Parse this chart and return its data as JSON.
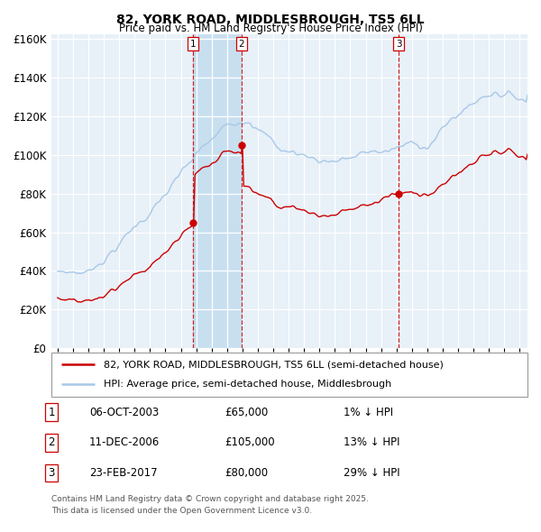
{
  "title": "82, YORK ROAD, MIDDLESBROUGH, TS5 6LL",
  "subtitle": "Price paid vs. HM Land Registry's House Price Index (HPI)",
  "legend_line1": "82, YORK ROAD, MIDDLESBROUGH, TS5 6LL (semi-detached house)",
  "legend_line2": "HPI: Average price, semi-detached house, Middlesbrough",
  "transactions": [
    {
      "num": 1,
      "date": "06-OCT-2003",
      "price": 65000,
      "rel": "1% ↓ HPI",
      "x_year": 2003.77
    },
    {
      "num": 2,
      "date": "11-DEC-2006",
      "price": 105000,
      "rel": "13% ↓ HPI",
      "x_year": 2006.94
    },
    {
      "num": 3,
      "date": "23-FEB-2017",
      "price": 80000,
      "rel": "29% ↓ HPI",
      "x_year": 2017.14
    }
  ],
  "footnote1": "Contains HM Land Registry data © Crown copyright and database right 2025.",
  "footnote2": "This data is licensed under the Open Government Licence v3.0.",
  "hpi_color": "#a8c8e8",
  "price_color": "#cc0000",
  "bg_chart": "#e8f0f8",
  "highlight_color": "#c8dff0",
  "grid_color": "#ffffff",
  "ylim": [
    0,
    162000
  ],
  "xlim_start": 1994.6,
  "xlim_end": 2025.5
}
